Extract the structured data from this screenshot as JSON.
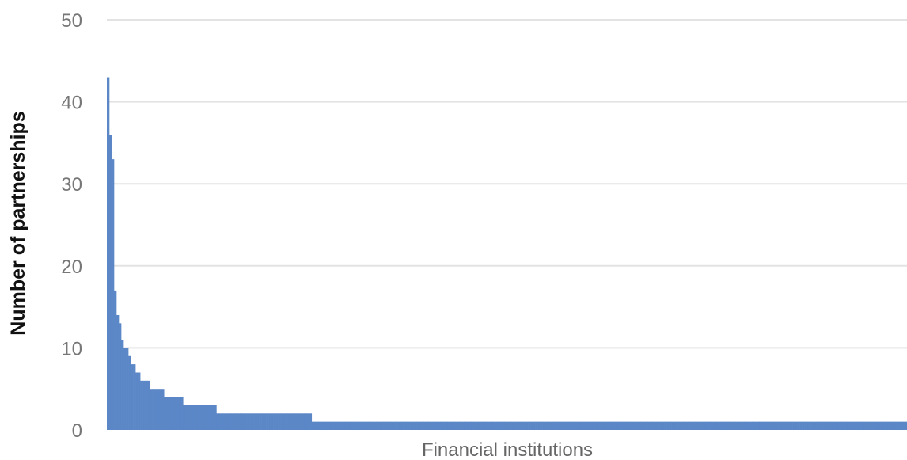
{
  "chart_data": {
    "type": "bar",
    "title": "",
    "xlabel": "Financial institutions",
    "ylabel": "Number of partnerships",
    "ylim": [
      0,
      50
    ],
    "yticks": [
      0,
      10,
      20,
      30,
      40,
      50
    ],
    "grid": true,
    "legend": "none",
    "bar_color": "#5b87c7",
    "grid_color": "#e3e3e3",
    "sorted_descending": true,
    "series": [
      {
        "segments": [
          {
            "value": 43,
            "count": 1
          },
          {
            "value": 36,
            "count": 1
          },
          {
            "value": 33,
            "count": 1
          },
          {
            "value": 17,
            "count": 1
          },
          {
            "value": 14,
            "count": 1
          },
          {
            "value": 13,
            "count": 1
          },
          {
            "value": 11,
            "count": 1
          },
          {
            "value": 10,
            "count": 2
          },
          {
            "value": 9,
            "count": 1
          },
          {
            "value": 8,
            "count": 2
          },
          {
            "value": 7,
            "count": 2
          },
          {
            "value": 6,
            "count": 4
          },
          {
            "value": 5,
            "count": 6
          },
          {
            "value": 4,
            "count": 8
          },
          {
            "value": 3,
            "count": 14
          },
          {
            "value": 2,
            "count": 40
          },
          {
            "value": 1,
            "count": 250
          }
        ]
      }
    ]
  }
}
